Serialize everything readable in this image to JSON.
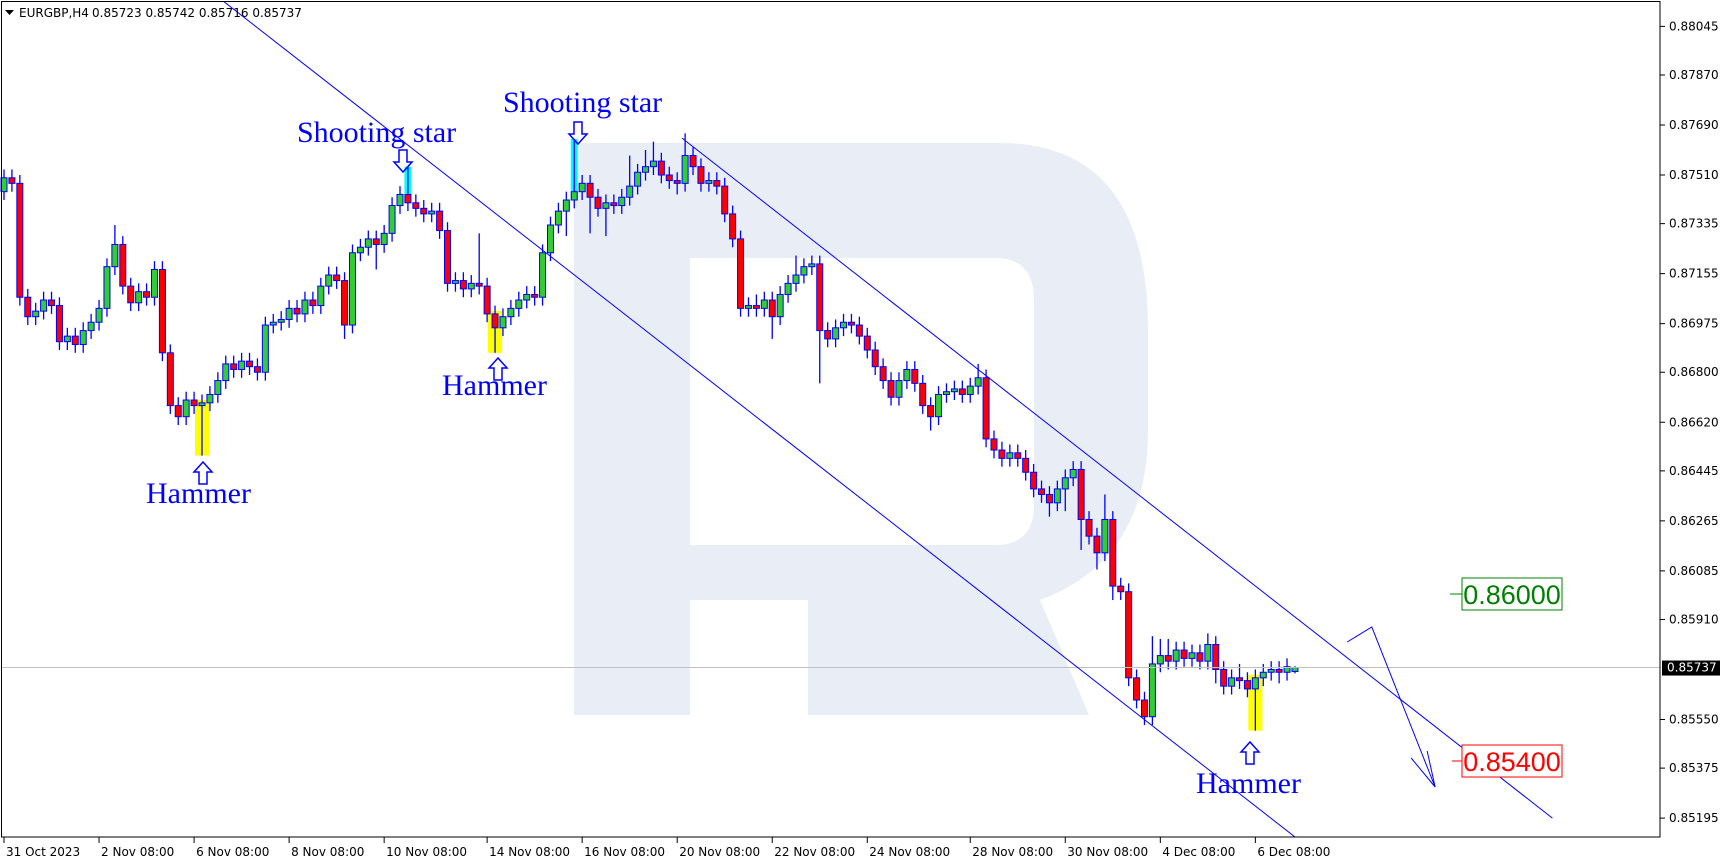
{
  "header": {
    "symbol": "EURGBP,H4",
    "ohlc_text": "0.85723 0.85742 0.85716 0.85737",
    "icon": "triangle-down-icon"
  },
  "colors": {
    "bull": "#32cd32",
    "bear": "#ff0000",
    "outline": "#0000ff",
    "watermark": "#e9eef6",
    "target_up": "#008000",
    "target_down": "#ff0000",
    "hammer_highlight": "#ffff00",
    "shooting_star_highlight": "#00ffff"
  },
  "annotations": {
    "shooting_star_1": "Shooting star",
    "shooting_star_2": "Shooting star",
    "hammer_1": "Hammer",
    "hammer_2": "Hammer",
    "hammer_3": "Hammer",
    "level_up": "0.86000",
    "level_down": "0.85400"
  },
  "chart_data": {
    "type": "candlestick",
    "title": "",
    "symbol": "EURGBP",
    "timeframe": "H4",
    "grid": false,
    "ylim": [
      0.85127,
      0.8814
    ],
    "y_ticks": [
      "0.88045",
      "0.87870",
      "0.87690",
      "0.87510",
      "0.87335",
      "0.87155",
      "0.86975",
      "0.86800",
      "0.86620",
      "0.86445",
      "0.86265",
      "0.86085",
      "0.85910",
      "0.85550",
      "0.85375",
      "0.85195"
    ],
    "current_price": "0.85737",
    "x_labels": [
      {
        "bar": 0,
        "label": "31 Oct 2023"
      },
      {
        "bar": 12,
        "label": "2 Nov 08:00"
      },
      {
        "bar": 24,
        "label": "6 Nov 08:00"
      },
      {
        "bar": 36,
        "label": "8 Nov 08:00"
      },
      {
        "bar": 48,
        "label": "10 Nov 08:00"
      },
      {
        "bar": 61,
        "label": "14 Nov 08:00"
      },
      {
        "bar": 73,
        "label": "16 Nov 08:00"
      },
      {
        "bar": 85,
        "label": "20 Nov 08:00"
      },
      {
        "bar": 97,
        "label": "22 Nov 08:00"
      },
      {
        "bar": 109,
        "label": "24 Nov 08:00"
      },
      {
        "bar": 122,
        "label": "28 Nov 08:00"
      },
      {
        "bar": 134,
        "label": "30 Nov 08:00"
      },
      {
        "bar": 146,
        "label": "4 Dec 08:00"
      },
      {
        "bar": 158,
        "label": "6 Dec 08:00"
      }
    ],
    "patterns": [
      {
        "bar": 25,
        "name": "Hammer"
      },
      {
        "bar": 51,
        "name": "Shooting star"
      },
      {
        "bar": 62,
        "name": "Hammer"
      },
      {
        "bar": 72,
        "name": "Shooting star"
      },
      {
        "bar": 158,
        "name": "Hammer"
      }
    ],
    "levels": [
      {
        "price": 0.86,
        "label": "0.86000"
      },
      {
        "price": 0.854,
        "label": "0.85400"
      }
    ],
    "trendlines": [
      {
        "name": "channel-lower",
        "points": [
          [
            27.5,
            0.8814
          ],
          [
            163,
            0.85127
          ]
        ]
      },
      {
        "name": "channel-upper",
        "points": [
          [
            85.6,
            0.87643
          ],
          [
            195.5,
            0.85195
          ]
        ]
      },
      {
        "name": "forecast-path",
        "points": [
          [
            169.6,
            0.85829
          ],
          [
            172.7,
            0.85883
          ],
          [
            180.7,
            0.85307
          ]
        ]
      }
    ],
    "candles_ohlc": [
      [
        0.8745,
        0.8753,
        0.8742,
        0.875
      ],
      [
        0.875,
        0.8753,
        0.8745,
        0.8748
      ],
      [
        0.8748,
        0.8751,
        0.8704,
        0.8707
      ],
      [
        0.8707,
        0.871,
        0.8697,
        0.87
      ],
      [
        0.87,
        0.8705,
        0.8697,
        0.8702
      ],
      [
        0.8702,
        0.8709,
        0.8699,
        0.8706
      ],
      [
        0.8706,
        0.8709,
        0.8701,
        0.8704
      ],
      [
        0.8704,
        0.8707,
        0.8688,
        0.8691
      ],
      [
        0.8691,
        0.8696,
        0.8688,
        0.8693
      ],
      [
        0.8693,
        0.8696,
        0.8687,
        0.869
      ],
      [
        0.869,
        0.8698,
        0.8687,
        0.8695
      ],
      [
        0.8695,
        0.8701,
        0.8692,
        0.8698
      ],
      [
        0.8698,
        0.8706,
        0.8695,
        0.8703
      ],
      [
        0.8703,
        0.8721,
        0.87,
        0.8718
      ],
      [
        0.8718,
        0.8733,
        0.8715,
        0.8726
      ],
      [
        0.8726,
        0.8729,
        0.8708,
        0.8711
      ],
      [
        0.8711,
        0.8714,
        0.8702,
        0.8705
      ],
      [
        0.8705,
        0.8712,
        0.8702,
        0.8709
      ],
      [
        0.8709,
        0.8712,
        0.8704,
        0.8707
      ],
      [
        0.8707,
        0.872,
        0.8704,
        0.8717
      ],
      [
        0.8717,
        0.872,
        0.8684,
        0.8687
      ],
      [
        0.8687,
        0.869,
        0.8665,
        0.8668
      ],
      [
        0.8668,
        0.8671,
        0.8661,
        0.8664
      ],
      [
        0.8664,
        0.8673,
        0.8661,
        0.867
      ],
      [
        0.867,
        0.8673,
        0.8665,
        0.8668
      ],
      [
        0.8668,
        0.8672,
        0.865,
        0.8669
      ],
      [
        0.8669,
        0.8675,
        0.8666,
        0.8672
      ],
      [
        0.8672,
        0.868,
        0.8669,
        0.8677
      ],
      [
        0.8677,
        0.8686,
        0.8674,
        0.8683
      ],
      [
        0.8683,
        0.8686,
        0.8678,
        0.8681
      ],
      [
        0.8681,
        0.8687,
        0.8678,
        0.8684
      ],
      [
        0.8684,
        0.8687,
        0.8679,
        0.8682
      ],
      [
        0.8682,
        0.8685,
        0.8677,
        0.868
      ],
      [
        0.868,
        0.87,
        0.8677,
        0.8697
      ],
      [
        0.8697,
        0.8701,
        0.8694,
        0.8698
      ],
      [
        0.8698,
        0.8702,
        0.8695,
        0.8699
      ],
      [
        0.8699,
        0.8706,
        0.8696,
        0.8703
      ],
      [
        0.8703,
        0.8706,
        0.8698,
        0.8701
      ],
      [
        0.8701,
        0.8709,
        0.8698,
        0.8706
      ],
      [
        0.8706,
        0.8709,
        0.8701,
        0.8704
      ],
      [
        0.8704,
        0.8714,
        0.8701,
        0.8711
      ],
      [
        0.8711,
        0.8718,
        0.8708,
        0.8715
      ],
      [
        0.8715,
        0.8718,
        0.871,
        0.8713
      ],
      [
        0.8713,
        0.8716,
        0.8692,
        0.8697
      ],
      [
        0.8697,
        0.8726,
        0.8694,
        0.8723
      ],
      [
        0.8723,
        0.8728,
        0.872,
        0.8725
      ],
      [
        0.8725,
        0.8731,
        0.8722,
        0.8728
      ],
      [
        0.8728,
        0.8731,
        0.8717,
        0.8726
      ],
      [
        0.8726,
        0.8733,
        0.8723,
        0.873
      ],
      [
        0.873,
        0.8743,
        0.8727,
        0.874
      ],
      [
        0.874,
        0.8747,
        0.8737,
        0.8744
      ],
      [
        0.8744,
        0.8754,
        0.8738,
        0.8741
      ],
      [
        0.8741,
        0.8744,
        0.8736,
        0.8739
      ],
      [
        0.8739,
        0.8742,
        0.8734,
        0.8737
      ],
      [
        0.8737,
        0.8741,
        0.8734,
        0.8738
      ],
      [
        0.8738,
        0.8741,
        0.8728,
        0.8731
      ],
      [
        0.8731,
        0.8734,
        0.8709,
        0.8712
      ],
      [
        0.8712,
        0.8716,
        0.8709,
        0.8713
      ],
      [
        0.8713,
        0.8716,
        0.8707,
        0.871
      ],
      [
        0.871,
        0.8715,
        0.8707,
        0.8712
      ],
      [
        0.8712,
        0.873,
        0.8708,
        0.8711
      ],
      [
        0.8711,
        0.8714,
        0.8698,
        0.8701
      ],
      [
        0.8701,
        0.8704,
        0.8687,
        0.8696
      ],
      [
        0.8696,
        0.8703,
        0.8693,
        0.87
      ],
      [
        0.87,
        0.8706,
        0.8697,
        0.8703
      ],
      [
        0.8703,
        0.8709,
        0.87,
        0.8706
      ],
      [
        0.8706,
        0.8711,
        0.8703,
        0.8708
      ],
      [
        0.8708,
        0.8711,
        0.8704,
        0.8707
      ],
      [
        0.8707,
        0.8726,
        0.8704,
        0.8723
      ],
      [
        0.8723,
        0.8736,
        0.872,
        0.8733
      ],
      [
        0.8733,
        0.8741,
        0.873,
        0.8738
      ],
      [
        0.8738,
        0.8745,
        0.8729,
        0.8742
      ],
      [
        0.8742,
        0.8764,
        0.8739,
        0.8745
      ],
      [
        0.8745,
        0.8751,
        0.8742,
        0.8748
      ],
      [
        0.8748,
        0.8751,
        0.873,
        0.8743
      ],
      [
        0.8743,
        0.8746,
        0.8736,
        0.8739
      ],
      [
        0.8739,
        0.8744,
        0.8729,
        0.8741
      ],
      [
        0.8741,
        0.8744,
        0.8737,
        0.874
      ],
      [
        0.874,
        0.8746,
        0.8737,
        0.8743
      ],
      [
        0.8743,
        0.8758,
        0.874,
        0.8747
      ],
      [
        0.8747,
        0.8755,
        0.8744,
        0.8752
      ],
      [
        0.8752,
        0.876,
        0.8749,
        0.8754
      ],
      [
        0.8754,
        0.8763,
        0.8751,
        0.8756
      ],
      [
        0.8756,
        0.8759,
        0.8748,
        0.8751
      ],
      [
        0.8751,
        0.8754,
        0.8746,
        0.8749
      ],
      [
        0.8749,
        0.8752,
        0.8744,
        0.8748
      ],
      [
        0.8748,
        0.8766,
        0.8745,
        0.8758
      ],
      [
        0.8758,
        0.8761,
        0.8751,
        0.8754
      ],
      [
        0.8754,
        0.8757,
        0.8745,
        0.8748
      ],
      [
        0.8748,
        0.8752,
        0.8745,
        0.8749
      ],
      [
        0.8749,
        0.8752,
        0.8744,
        0.8747
      ],
      [
        0.8747,
        0.875,
        0.8734,
        0.8737
      ],
      [
        0.8737,
        0.874,
        0.8725,
        0.8728
      ],
      [
        0.8728,
        0.8731,
        0.87,
        0.8703
      ],
      [
        0.8703,
        0.8707,
        0.87,
        0.8704
      ],
      [
        0.8704,
        0.8708,
        0.87,
        0.8703
      ],
      [
        0.8703,
        0.8709,
        0.87,
        0.8706
      ],
      [
        0.8706,
        0.8709,
        0.8692,
        0.87
      ],
      [
        0.87,
        0.8711,
        0.8697,
        0.8708
      ],
      [
        0.8708,
        0.8715,
        0.8705,
        0.8712
      ],
      [
        0.8712,
        0.8722,
        0.8709,
        0.8715
      ],
      [
        0.8715,
        0.8721,
        0.8712,
        0.8718
      ],
      [
        0.8718,
        0.8722,
        0.8715,
        0.8719
      ],
      [
        0.8719,
        0.8722,
        0.8676,
        0.8695
      ],
      [
        0.8695,
        0.8698,
        0.8689,
        0.8692
      ],
      [
        0.8692,
        0.8699,
        0.8689,
        0.8696
      ],
      [
        0.8696,
        0.8701,
        0.8693,
        0.8698
      ],
      [
        0.8698,
        0.8701,
        0.8694,
        0.8697
      ],
      [
        0.8697,
        0.87,
        0.869,
        0.8693
      ],
      [
        0.8693,
        0.8696,
        0.8685,
        0.8688
      ],
      [
        0.8688,
        0.8691,
        0.8679,
        0.8682
      ],
      [
        0.8682,
        0.8685,
        0.8674,
        0.8677
      ],
      [
        0.8677,
        0.868,
        0.8668,
        0.8671
      ],
      [
        0.8671,
        0.868,
        0.8668,
        0.8677
      ],
      [
        0.8677,
        0.8684,
        0.8674,
        0.8681
      ],
      [
        0.8681,
        0.8684,
        0.8673,
        0.8676
      ],
      [
        0.8676,
        0.8679,
        0.8665,
        0.8668
      ],
      [
        0.8668,
        0.8671,
        0.8659,
        0.8664
      ],
      [
        0.8664,
        0.8675,
        0.8661,
        0.8672
      ],
      [
        0.8672,
        0.8676,
        0.8669,
        0.8673
      ],
      [
        0.8673,
        0.8677,
        0.867,
        0.8674
      ],
      [
        0.8674,
        0.8677,
        0.8669,
        0.8672
      ],
      [
        0.8672,
        0.8678,
        0.8669,
        0.8675
      ],
      [
        0.8675,
        0.8683,
        0.8672,
        0.8678
      ],
      [
        0.8678,
        0.8681,
        0.8653,
        0.8656
      ],
      [
        0.8656,
        0.8659,
        0.8649,
        0.8652
      ],
      [
        0.8652,
        0.8655,
        0.8646,
        0.8649
      ],
      [
        0.8649,
        0.8654,
        0.8646,
        0.8651
      ],
      [
        0.8651,
        0.8654,
        0.8646,
        0.8649
      ],
      [
        0.8649,
        0.8652,
        0.8641,
        0.8644
      ],
      [
        0.8644,
        0.8647,
        0.8635,
        0.8638
      ],
      [
        0.8638,
        0.8641,
        0.8633,
        0.8636
      ],
      [
        0.8636,
        0.8639,
        0.8628,
        0.8633
      ],
      [
        0.8633,
        0.8641,
        0.863,
        0.8638
      ],
      [
        0.8638,
        0.8645,
        0.863,
        0.8642
      ],
      [
        0.8642,
        0.8648,
        0.8639,
        0.8645
      ],
      [
        0.8645,
        0.8648,
        0.8616,
        0.8627
      ],
      [
        0.8627,
        0.863,
        0.8618,
        0.8621
      ],
      [
        0.8621,
        0.8624,
        0.8609,
        0.8615
      ],
      [
        0.8615,
        0.8636,
        0.8612,
        0.8627
      ],
      [
        0.8627,
        0.863,
        0.8598,
        0.8603
      ],
      [
        0.8603,
        0.8606,
        0.8598,
        0.8601
      ],
      [
        0.8601,
        0.8604,
        0.8567,
        0.857
      ],
      [
        0.857,
        0.8573,
        0.8559,
        0.8562
      ],
      [
        0.8562,
        0.8565,
        0.8553,
        0.8556
      ],
      [
        0.8556,
        0.8585,
        0.8553,
        0.8575
      ],
      [
        0.8575,
        0.8584,
        0.8572,
        0.8578
      ],
      [
        0.8578,
        0.8584,
        0.8573,
        0.8576
      ],
      [
        0.8576,
        0.8583,
        0.8573,
        0.858
      ],
      [
        0.858,
        0.8583,
        0.8574,
        0.8577
      ],
      [
        0.8577,
        0.8582,
        0.8574,
        0.8579
      ],
      [
        0.8579,
        0.8582,
        0.8573,
        0.8576
      ],
      [
        0.8576,
        0.8586,
        0.8573,
        0.8582
      ],
      [
        0.8582,
        0.8585,
        0.8568,
        0.8573
      ],
      [
        0.8573,
        0.8576,
        0.8564,
        0.8567
      ],
      [
        0.8567,
        0.8573,
        0.8564,
        0.857
      ],
      [
        0.857,
        0.8575,
        0.8566,
        0.8569
      ],
      [
        0.8569,
        0.8572,
        0.8563,
        0.8566
      ],
      [
        0.8566,
        0.8573,
        0.8551,
        0.857
      ],
      [
        0.857,
        0.8575,
        0.8567,
        0.8572
      ],
      [
        0.8572,
        0.8576,
        0.8569,
        0.8573
      ],
      [
        0.8573,
        0.8576,
        0.8568,
        0.8572
      ],
      [
        0.8572,
        0.8577,
        0.8569,
        0.8574
      ],
      [
        0.85723,
        0.85742,
        0.85716,
        0.85737
      ]
    ]
  }
}
